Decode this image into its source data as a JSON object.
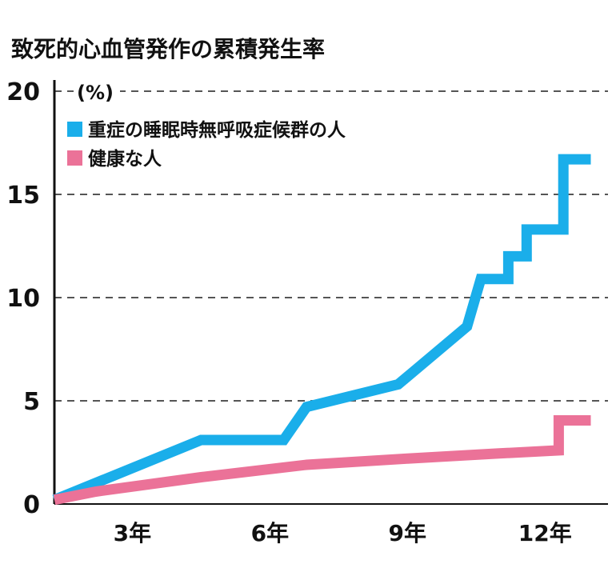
{
  "title": "致死的心血管発作の累積発生率",
  "chart_data": {
    "type": "line",
    "title": "致死的心血管発作の累積発生率",
    "ylabel": "(%)",
    "xlabel": "",
    "ylim": [
      0,
      20
    ],
    "yticks": [
      "0",
      "5",
      "10",
      "15",
      "20"
    ],
    "xticks": [
      {
        "label": "3年",
        "value": 3
      },
      {
        "label": "6年",
        "value": 6
      },
      {
        "label": "9年",
        "value": 9
      },
      {
        "label": "12年",
        "value": 12
      }
    ],
    "xlim": [
      1.3,
      13.2
    ],
    "grid": true,
    "legend_position": "top-left",
    "series": [
      {
        "name": "重症の睡眠時無呼吸症候群の人",
        "color": "#1aaeea",
        "points": [
          [
            1.3,
            0.2
          ],
          [
            4.5,
            3.1
          ],
          [
            6.3,
            3.1
          ],
          [
            6.8,
            4.7
          ],
          [
            8.8,
            5.8
          ],
          [
            10.3,
            8.6
          ],
          [
            10.6,
            10.9
          ],
          [
            11.2,
            10.9
          ],
          [
            11.2,
            12.0
          ],
          [
            11.6,
            12.0
          ],
          [
            11.6,
            13.3
          ],
          [
            12.4,
            13.3
          ],
          [
            12.4,
            16.7
          ],
          [
            13.0,
            16.7
          ]
        ]
      },
      {
        "name": "健康な人",
        "color": "#eb7298",
        "points": [
          [
            1.3,
            0.2
          ],
          [
            2.2,
            0.6
          ],
          [
            4.5,
            1.3
          ],
          [
            6.8,
            1.9
          ],
          [
            9.0,
            2.2
          ],
          [
            11.0,
            2.45
          ],
          [
            12.3,
            2.6
          ],
          [
            12.3,
            4.05
          ],
          [
            13.0,
            4.05
          ]
        ]
      }
    ]
  }
}
